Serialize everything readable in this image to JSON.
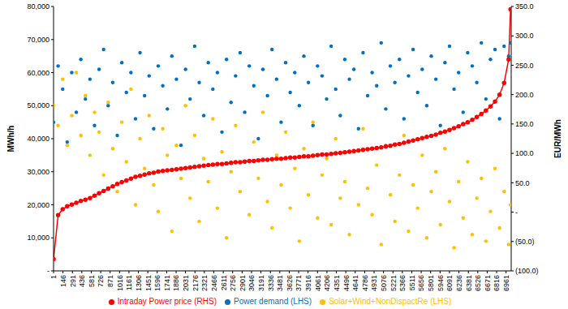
{
  "chart_data": {
    "type": "scatter",
    "y_label": "MWh/h",
    "y2_label": "EUR/MWh",
    "grid": false,
    "legend": "bottom",
    "x": [
      1,
      71,
      141,
      211,
      281,
      351,
      421,
      491,
      561,
      631,
      701,
      771,
      841,
      911,
      981,
      1051,
      1121,
      1191,
      1261,
      1331,
      1401,
      1471,
      1541,
      1611,
      1681,
      1751,
      1821,
      1891,
      1961,
      2031,
      2101,
      2171,
      2241,
      2311,
      2381,
      2451,
      2521,
      2591,
      2661,
      2731,
      2801,
      2871,
      2941,
      3011,
      3081,
      3151,
      3221,
      3291,
      3361,
      3431,
      3501,
      3571,
      3641,
      3711,
      3781,
      3851,
      3921,
      3991,
      4061,
      4131,
      4201,
      4271,
      4341,
      4411,
      4481,
      4551,
      4621,
      4691,
      4761,
      4831,
      4901,
      4971,
      5041,
      5111,
      5181,
      5251,
      5321,
      5391,
      5461,
      5531,
      5601,
      5671,
      5741,
      5811,
      5881,
      5951,
      6021,
      6091,
      6161,
      6231,
      6301,
      6371,
      6441,
      6511,
      6581,
      6651,
      6721,
      6791,
      6861,
      6931,
      7001,
      7030
    ],
    "xlim": [
      1,
      7040
    ],
    "xticks": [
      1,
      146,
      291,
      436,
      581,
      726,
      871,
      1016,
      1161,
      1306,
      1451,
      1596,
      1741,
      1886,
      2031,
      2176,
      2321,
      2466,
      2611,
      2756,
      2901,
      3046,
      3191,
      3336,
      3481,
      3626,
      3771,
      3916,
      4061,
      4206,
      4351,
      4496,
      4641,
      4786,
      4931,
      5076,
      5221,
      5366,
      5511,
      5656,
      5801,
      5946,
      6091,
      6236,
      6381,
      6526,
      6671,
      6816,
      6961
    ],
    "ylim": [
      0,
      80000
    ],
    "yticks": [
      {
        "value": 0,
        "label": "-"
      },
      {
        "value": 10000,
        "label": "10,000"
      },
      {
        "value": 20000,
        "label": "20,000"
      },
      {
        "value": 30000,
        "label": "30,000"
      },
      {
        "value": 40000,
        "label": "40,000"
      },
      {
        "value": 50000,
        "label": "50,000"
      },
      {
        "value": 60000,
        "label": "60,000"
      },
      {
        "value": 70000,
        "label": "70,000"
      },
      {
        "value": 80000,
        "label": "80,000"
      }
    ],
    "y2lim": [
      -100,
      350
    ],
    "y2ticks": [
      {
        "value": -100,
        "label": "(100.0)"
      },
      {
        "value": -50,
        "label": "(50.0)"
      },
      {
        "value": 0,
        "label": "-"
      },
      {
        "value": 50,
        "label": "50.0"
      },
      {
        "value": 100,
        "label": "100.0"
      },
      {
        "value": 150,
        "label": "150.0"
      },
      {
        "value": 200,
        "label": "200.0"
      },
      {
        "value": 250,
        "label": "250.0"
      },
      {
        "value": 300,
        "label": "300.0"
      },
      {
        "value": 350,
        "label": "350.0"
      }
    ],
    "series": [
      {
        "name": "Power demand (LHS)",
        "type": "scatter",
        "marker": "circle",
        "color": "#0070C0",
        "values": [
          45000,
          62000,
          55000,
          39000,
          60000,
          48000,
          64000,
          52000,
          58000,
          44000,
          61000,
          67000,
          50000,
          57000,
          41000,
          63000,
          54000,
          60000,
          46000,
          66000,
          53000,
          59000,
          43000,
          62000,
          56000,
          49000,
          65000,
          58000,
          38000,
          61000,
          52000,
          68000,
          57000,
          47000,
          63000,
          55000,
          60000,
          42000,
          64000,
          51000,
          59000,
          66000,
          48000,
          62000,
          56000,
          40000,
          61000,
          53000,
          67000,
          58000,
          45000,
          63000,
          54000,
          60000,
          50000,
          65000,
          57000,
          44000,
          62000,
          59000,
          52000,
          68000,
          55000,
          47000,
          64000,
          58000,
          61000,
          43000,
          66000,
          53000,
          60000,
          56000,
          69000,
          49000,
          62000,
          57000,
          64000,
          46000,
          59000,
          67000,
          54000,
          61000,
          50000,
          65000,
          58000,
          44000,
          63000,
          68000,
          55000,
          60000,
          48000,
          66000,
          62000,
          57000,
          69000,
          52000,
          64000,
          67000,
          46000,
          68000,
          65000,
          69000
        ]
      },
      {
        "name": "Solar+Wind+NonDispactRe (LHS)",
        "type": "scatter",
        "marker": "circle",
        "color": "#FFC000",
        "values": [
          50000,
          44000,
          58000,
          38000,
          47000,
          60000,
          41000,
          53000,
          35000,
          48000,
          42000,
          29000,
          51000,
          37000,
          24000,
          45000,
          33000,
          55000,
          20000,
          40000,
          31000,
          47000,
          26000,
          18000,
          43000,
          35000,
          12000,
          38000,
          28000,
          50000,
          22000,
          41000,
          15000,
          34000,
          27000,
          46000,
          19000,
          36000,
          10000,
          30000,
          44000,
          24000,
          33000,
          17000,
          39000,
          28000,
          48000,
          21000,
          13000,
          35000,
          26000,
          42000,
          19000,
          31000,
          9000,
          37000,
          23000,
          45000,
          16000,
          29000,
          34000,
          14000,
          40000,
          22000,
          27000,
          11000,
          36000,
          20000,
          43000,
          25000,
          17000,
          32000,
          8000,
          38000,
          23000,
          15000,
          29000,
          41000,
          12000,
          26000,
          19000,
          35000,
          10000,
          24000,
          30000,
          14000,
          37000,
          21000,
          7000,
          27000,
          16000,
          33000,
          11000,
          22000,
          28000,
          9000,
          18000,
          31000,
          13000,
          24000,
          8000,
          20000
        ]
      },
      {
        "name": "Intraday Power price (RHS)",
        "type": "line",
        "marker": "circle",
        "axis": "y2",
        "color": "#FF0000",
        "values": [
          -80,
          -5,
          5,
          10,
          13,
          16,
          19,
          21,
          24,
          28,
          32,
          36,
          40,
          44,
          48,
          51,
          54,
          57,
          60,
          62,
          64,
          66,
          67,
          69,
          70,
          71,
          72,
          73,
          74,
          75,
          76,
          77,
          78,
          79,
          80,
          81,
          82,
          82,
          83,
          84,
          85,
          85,
          86,
          87,
          87,
          88,
          89,
          89,
          90,
          91,
          91,
          92,
          93,
          93,
          94,
          95,
          95,
          96,
          97,
          98,
          98,
          99,
          100,
          101,
          102,
          103,
          104,
          105,
          106,
          107,
          108,
          109,
          110,
          112,
          113,
          115,
          116,
          118,
          120,
          122,
          124,
          126,
          128,
          130,
          132,
          135,
          137,
          140,
          143,
          146,
          150,
          153,
          157,
          162,
          167,
          173,
          180,
          188,
          200,
          220,
          260,
          345
        ]
      }
    ]
  }
}
